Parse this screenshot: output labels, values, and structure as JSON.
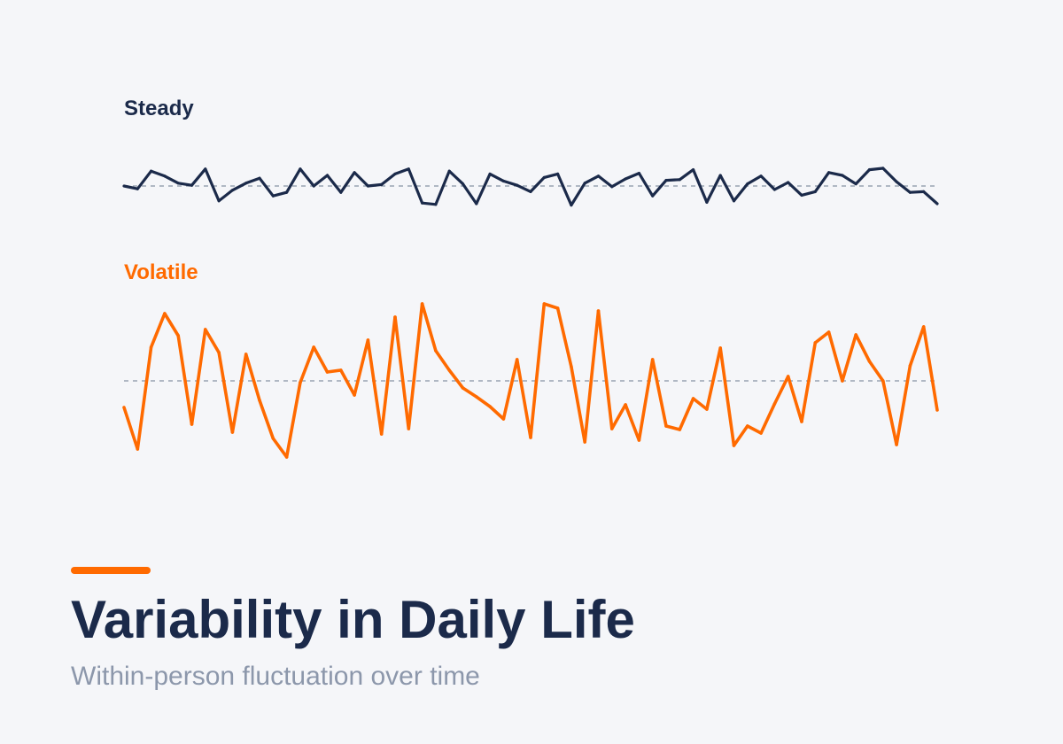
{
  "colors": {
    "background": "#f5f6f9",
    "steady": "#1b2a4a",
    "volatile": "#ff6a00",
    "baseline": "#9aa3b2",
    "subtitle": "#8c97ab"
  },
  "title": "Variability in Daily Life",
  "subtitle": "Within-person fluctuation over time",
  "chart_data": [
    {
      "type": "line",
      "title": "Steady",
      "name": "Steady",
      "color": "#1b2a4a",
      "baseline": 0,
      "grid": false,
      "x": [
        0,
        1,
        2,
        3,
        4,
        5,
        6,
        7,
        8,
        9,
        10,
        11,
        12,
        13,
        14,
        15,
        16,
        17,
        18,
        19,
        20,
        21,
        22,
        23,
        24,
        25,
        26,
        27,
        28,
        29,
        30,
        31,
        32,
        33,
        34,
        35,
        36,
        37,
        38,
        39,
        40,
        41,
        42,
        43,
        44,
        45,
        46,
        47,
        48,
        49,
        50,
        51,
        52,
        53,
        54,
        55,
        56,
        57,
        58,
        59,
        60
      ],
      "values": [
        0.0,
        -0.08,
        0.42,
        0.28,
        0.08,
        0.02,
        0.48,
        -0.42,
        -0.12,
        0.08,
        0.22,
        -0.28,
        -0.18,
        0.48,
        0.0,
        0.3,
        -0.18,
        0.38,
        0.0,
        0.04,
        0.34,
        0.48,
        -0.48,
        -0.52,
        0.42,
        0.06,
        -0.5,
        0.34,
        0.14,
        0.02,
        -0.16,
        0.24,
        0.34,
        -0.54,
        0.08,
        0.28,
        -0.02,
        0.2,
        0.36,
        -0.28,
        0.16,
        0.18,
        0.46,
        -0.46,
        0.3,
        -0.42,
        0.06,
        0.28,
        -0.1,
        0.1,
        -0.26,
        -0.16,
        0.38,
        0.3,
        0.06,
        0.46,
        0.5,
        0.12,
        -0.18,
        -0.16,
        -0.5
      ]
    },
    {
      "type": "line",
      "title": "Volatile",
      "name": "Volatile",
      "color": "#ff6a00",
      "baseline": 0,
      "grid": false,
      "x": [
        0,
        1,
        2,
        3,
        4,
        5,
        6,
        7,
        8,
        9,
        10,
        11,
        12,
        13,
        14,
        15,
        16,
        17,
        18,
        19,
        20,
        21,
        22,
        23,
        24,
        25,
        26,
        27,
        28,
        29,
        30,
        31,
        32,
        33,
        34,
        35,
        36,
        37,
        38,
        39,
        40,
        41,
        42,
        43,
        44,
        45,
        46,
        47,
        48,
        49,
        50,
        51,
        52,
        53,
        54,
        55,
        56,
        57,
        58,
        59,
        60
      ],
      "values": [
        -0.3,
        -0.77,
        0.38,
        0.76,
        0.51,
        -0.49,
        0.58,
        0.32,
        -0.58,
        0.3,
        -0.22,
        -0.65,
        -0.86,
        -0.02,
        0.38,
        0.1,
        0.12,
        -0.16,
        0.46,
        -0.6,
        0.72,
        -0.54,
        0.87,
        0.34,
        0.12,
        -0.08,
        -0.18,
        -0.29,
        -0.43,
        0.24,
        -0.64,
        0.87,
        0.82,
        0.16,
        -0.69,
        0.79,
        -0.54,
        -0.27,
        -0.67,
        0.24,
        -0.51,
        -0.55,
        -0.2,
        -0.32,
        0.37,
        -0.73,
        -0.51,
        -0.59,
        -0.26,
        0.05,
        -0.46,
        0.43,
        0.55,
        0.0,
        0.52,
        0.22,
        0.0,
        -0.72,
        0.17,
        0.61,
        -0.33
      ]
    }
  ]
}
